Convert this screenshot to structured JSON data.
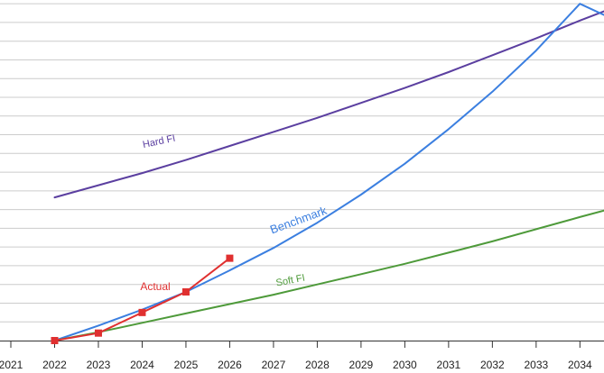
{
  "chart_data": {
    "type": "line",
    "x": [
      2021,
      2022,
      2023,
      2024,
      2025,
      2026,
      2027,
      2028,
      2029,
      2030,
      2031,
      2032,
      2033,
      2034
    ],
    "xlim": [
      2021,
      2034.55
    ],
    "ylim": [
      0,
      18.2
    ],
    "grid": true,
    "series": [
      {
        "name": "Hard FI",
        "color": "#5b3fa0",
        "x": [
          2022,
          2023,
          2024,
          2025,
          2026,
          2027,
          2028,
          2029,
          2030,
          2031,
          2032,
          2033,
          2034,
          2034.55
        ],
        "values": [
          7.65,
          8.3,
          8.95,
          9.65,
          10.4,
          11.15,
          11.9,
          12.7,
          13.5,
          14.35,
          15.25,
          16.15,
          17.1,
          17.6
        ]
      },
      {
        "name": "Benchmark",
        "color": "#3b7fe0",
        "x": [
          2022,
          2023,
          2024,
          2025,
          2026,
          2027,
          2028,
          2029,
          2030,
          2031,
          2032,
          2033,
          2034,
          2034.55
        ],
        "values": [
          0.0,
          0.8,
          1.65,
          2.6,
          3.75,
          4.95,
          6.3,
          7.8,
          9.45,
          11.3,
          13.3,
          15.5,
          18.0,
          17.4
        ]
      },
      {
        "name": "Soft FI",
        "color": "#4e9a3a",
        "x": [
          2022,
          2023,
          2024,
          2025,
          2026,
          2027,
          2028,
          2029,
          2030,
          2031,
          2032,
          2033,
          2034,
          2034.55
        ],
        "values": [
          0.0,
          0.45,
          0.95,
          1.45,
          1.95,
          2.45,
          3.0,
          3.55,
          4.1,
          4.7,
          5.3,
          5.95,
          6.6,
          6.95
        ]
      },
      {
        "name": "Actual",
        "color": "#e03030",
        "marker": "square",
        "x": [
          2022,
          2023,
          2024,
          2025,
          2026
        ],
        "values": [
          0.0,
          0.4,
          1.5,
          2.6,
          4.4
        ]
      }
    ]
  }
}
